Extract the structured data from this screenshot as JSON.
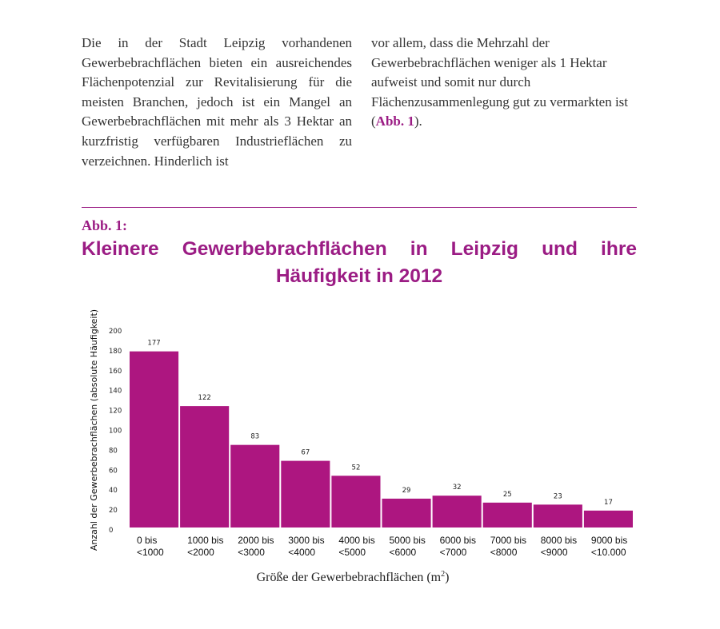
{
  "text": {
    "left_column": "Die in der Stadt Leipzig vorhandenen Gewerbebrachflächen bieten ein ausreichendes Flächenpotenzial zur Revitalisierung für die meisten Branchen, jedoch ist ein Mangel an Gewerbebrachflächen mit mehr als 3 Hektar an kurzfristig verfügbaren Industrieflächen zu verzeichnen. Hinderlich ist",
    "right_column": "vor allem, dass die Mehrzahl der Gewerbebrachflächen weniger als 1 Hektar aufweist und somit nur durch Flächenzusammenlegung gut zu vermarkten ist",
    "right_ref_open": "(",
    "right_ref": "Abb. 1",
    "right_ref_close": ")."
  },
  "figure": {
    "label": "Abb. 1:",
    "title_line1": "Kleinere Gewerbebrachflächen in Leipzig und ihre",
    "title_line2": "Häufigkeit in 2012"
  },
  "colors": {
    "accent": "#9b1c84",
    "bar": "#ad1680"
  },
  "chart_data": {
    "type": "bar",
    "title": "Kleinere Gewerbebrachflächen in Leipzig und ihre Häufigkeit in 2012",
    "ylabel": "Anzahl der Gewerbebrachflächen (absolute Häufigkeit)",
    "xlabel": "Größe der Gewerbebrachflächen (m²)",
    "xlabel_main": "Größe der Gewerbebrachflächen (m",
    "xlabel_sup": "2",
    "xlabel_end": ")",
    "ylim": [
      0,
      200
    ],
    "yticks": [
      "0",
      "20",
      "40",
      "60",
      "80",
      "100",
      "120",
      "140",
      "160",
      "180",
      "200"
    ],
    "grid": false,
    "categories": [
      [
        "0 bis",
        "<1000"
      ],
      [
        "1000 bis",
        "<2000"
      ],
      [
        "2000 bis",
        "<3000"
      ],
      [
        "3000 bis",
        "<4000"
      ],
      [
        "4000 bis",
        "<5000"
      ],
      [
        "5000 bis",
        "<6000"
      ],
      [
        "6000 bis",
        "<7000"
      ],
      [
        "7000 bis",
        "<8000"
      ],
      [
        "8000 bis",
        "<9000"
      ],
      [
        "9000 bis",
        "<10.000"
      ]
    ],
    "values": [
      177,
      122,
      83,
      67,
      52,
      29,
      32,
      25,
      23,
      17
    ]
  }
}
